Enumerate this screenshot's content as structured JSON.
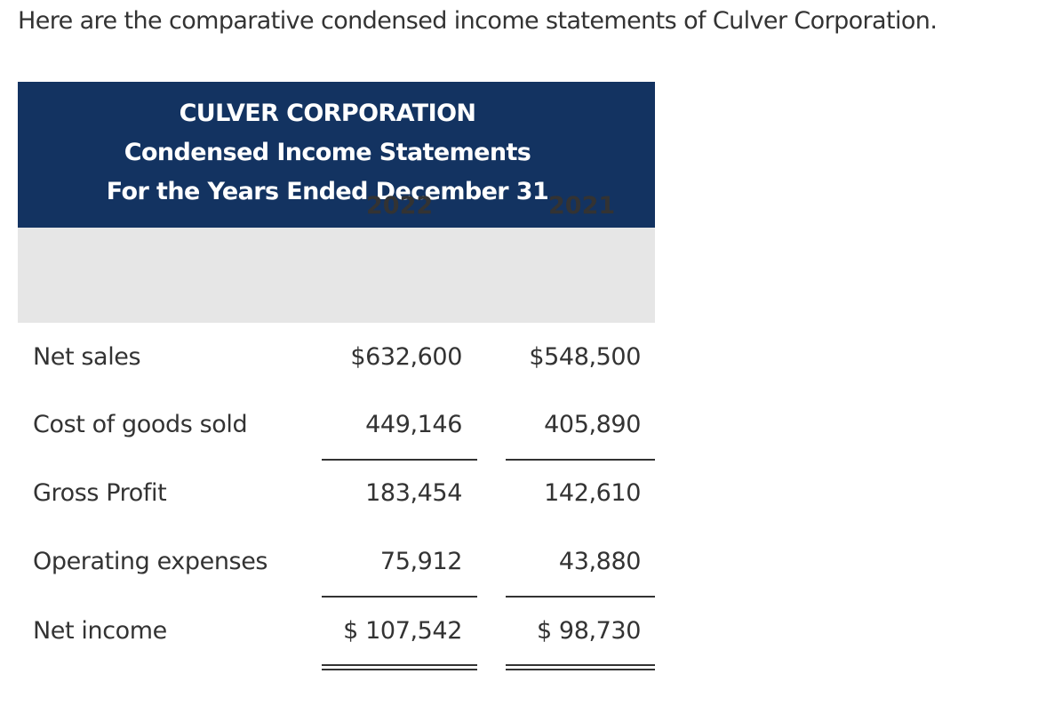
{
  "intro": "Here are the comparative condensed income statements of Culver Corporation.",
  "statement": {
    "company": "CULVER CORPORATION",
    "title": "Condensed Income Statements",
    "period": "For the Years Ended December 31",
    "columns": [
      "2022",
      "2021"
    ],
    "rows": [
      {
        "label": "Net sales",
        "values": [
          "$632,600",
          "$548,500"
        ]
      },
      {
        "label": "Cost of goods sold",
        "values": [
          "449,146",
          "405,890"
        ]
      },
      {
        "label": "Gross Profit",
        "values": [
          "183,454",
          "142,610"
        ]
      },
      {
        "label": "Operating expenses",
        "values": [
          "75,912",
          "43,880"
        ]
      },
      {
        "label": "Net income",
        "values": [
          "$ 107,542",
          "$ 98,730"
        ]
      }
    ]
  },
  "colors": {
    "header_bg": "#133361",
    "column_header_bg": "#e6e6e6",
    "text": "#333333"
  }
}
